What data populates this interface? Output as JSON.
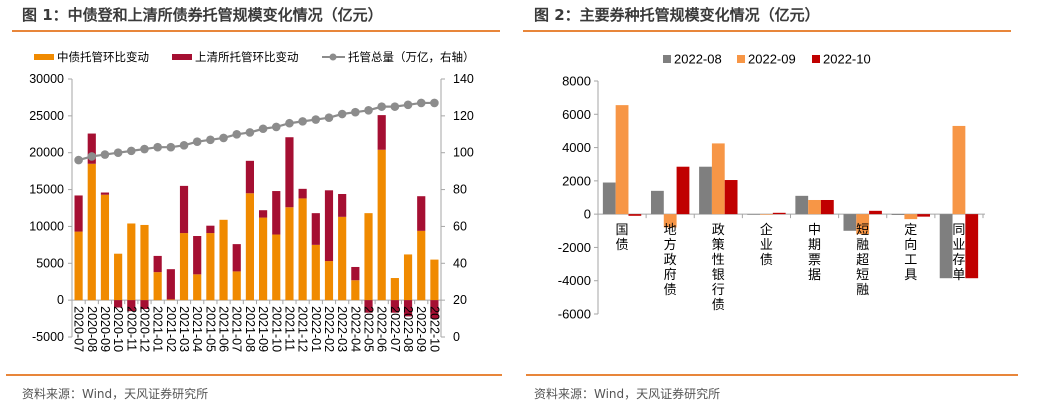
{
  "figures": [
    {
      "title": "图 1：中债登和上清所债券托管规模变化情况（亿元）",
      "source": "资料来源：Wind，天风证券研究所"
    },
    {
      "title": "图 2：主要券种托管规模变化情况（亿元）",
      "source": "资料来源：Wind，天风证券研究所"
    }
  ],
  "colors": {
    "accent_rule": "#e8863a",
    "zz_bar": "#f08a00",
    "sqs_bar": "#a50f32",
    "total_line": "#8c8c8c",
    "s_2022_08": "#7f7f7f",
    "s_2022_09": "#f79646",
    "s_2022_10": "#c00000"
  },
  "chart_data": [
    {
      "type": "bar",
      "stacked": true,
      "title": "图 1：中债登和上清所债券托管规模变化情况（亿元）",
      "categories": [
        "2020-07",
        "2020-08",
        "2020-09",
        "2020-10",
        "2020-11",
        "2020-12",
        "2021-01",
        "2021-02",
        "2021-03",
        "2021-04",
        "2021-05",
        "2021-06",
        "2021-07",
        "2021-08",
        "2021-09",
        "2021-10",
        "2021-11",
        "2021-12",
        "2022-01",
        "2022-02",
        "2022-03",
        "2022-04",
        "2022-05",
        "2022-06",
        "2022-07",
        "2022-08",
        "2022-09",
        "2022-10"
      ],
      "series": [
        {
          "name": "中债托管环比变动",
          "axis": "left",
          "values": [
            9300,
            18500,
            14300,
            6300,
            10400,
            10200,
            3800,
            100,
            9100,
            3500,
            9100,
            10900,
            3900,
            14500,
            11200,
            8900,
            12600,
            13800,
            7500,
            5300,
            11300,
            2700,
            11800,
            20400,
            3000,
            6200,
            9400,
            5500
          ]
        },
        {
          "name": "上清所托管环比变动",
          "axis": "left",
          "values": [
            4900,
            4100,
            300,
            -1000,
            -1500,
            -1200,
            2200,
            4100,
            6400,
            5200,
            1000,
            0,
            3700,
            4400,
            1000,
            5900,
            9500,
            1300,
            4300,
            9600,
            3100,
            1800,
            -1700,
            4700,
            -1700,
            -2200,
            4700,
            -2500
          ]
        },
        {
          "name": "托管总量（万亿，右轴）",
          "axis": "right",
          "type": "line",
          "values": [
            96,
            98,
            99,
            100,
            101,
            102,
            103,
            103,
            104,
            106,
            107,
            108,
            110,
            111,
            113,
            114,
            116,
            117,
            118,
            119,
            121,
            122,
            123,
            125,
            125,
            126,
            127,
            127
          ]
        }
      ],
      "legend": [
        "中债托管环比变动",
        "上清所托管环比变动",
        "托管总量（万亿，右轴）"
      ],
      "legend_position": "top",
      "y_left": {
        "min": -5000,
        "max": 30000,
        "ticks": [
          "30000",
          "25000",
          "20000",
          "15000",
          "10000",
          "5000",
          "0",
          "-5000"
        ]
      },
      "y_right": {
        "min": 0,
        "max": 140,
        "ticks": [
          "140",
          "120",
          "100",
          "80",
          "60",
          "40",
          "20",
          "0"
        ]
      },
      "grid": false
    },
    {
      "type": "bar",
      "title": "图 2：主要券种托管规模变化情况（亿元）",
      "categories": [
        "国债",
        "地方政府债",
        "政策性银行债",
        "企业债",
        "中期票据",
        "短融超短融",
        "定向工具",
        "同业存单"
      ],
      "series": [
        {
          "name": "2022-08",
          "values": [
            1900,
            1400,
            2850,
            0,
            1100,
            -1000,
            -50,
            -3850
          ]
        },
        {
          "name": "2022-09",
          "values": [
            6550,
            -800,
            4250,
            0,
            850,
            -1200,
            -300,
            5300
          ]
        },
        {
          "name": "2022-10",
          "values": [
            -100,
            2850,
            2050,
            80,
            850,
            200,
            -150,
            -3850
          ]
        }
      ],
      "legend": [
        "2022-08",
        "2022-09",
        "2022-10"
      ],
      "legend_position": "top",
      "y": {
        "min": -6000,
        "max": 8000,
        "ticks": [
          "8000",
          "6000",
          "4000",
          "2000",
          "0",
          "-2000",
          "-4000",
          "-6000"
        ]
      },
      "grid": false
    }
  ]
}
